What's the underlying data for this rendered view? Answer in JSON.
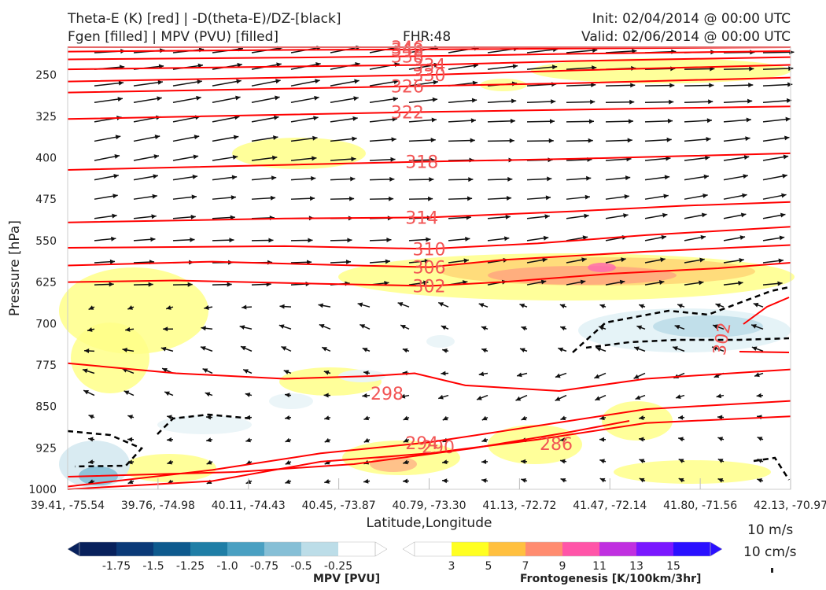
{
  "header": {
    "title_line1": "Theta-E (K) [red] | -D(theta-E)/DZ-[black]",
    "title_line2": "Fgen [filled] | MPV (PVU) [filled]",
    "fhr": "FHR:48",
    "init": "Init: 02/04/2014 @ 00:00 UTC",
    "valid": "Valid: 02/06/2014 @ 00:00 UTC"
  },
  "chart_data": {
    "type": "cross-section",
    "xlabel": "Latitude,Longitude",
    "ylabel": "Pressure [hPa]",
    "x_ticks": [
      "39.41, -75.54",
      "39.76, -74.98",
      "40.11, -74.43",
      "40.45, -73.87",
      "40.79, -73.30",
      "41.13, -72.72",
      "41.47, -72.14",
      "41.80, -71.56",
      "42.13, -70.97"
    ],
    "y_ticks": [
      250,
      325,
      400,
      475,
      550,
      625,
      700,
      775,
      850,
      925,
      1000
    ],
    "y_range": [
      1000,
      200
    ],
    "y_scale": "linear-inverted",
    "theta_e_contours": [
      {
        "label": "290",
        "color": "#ff0000",
        "points": [
          [
            0,
            1000
          ],
          [
            0.2,
            985
          ],
          [
            0.35,
            950
          ],
          [
            0.5,
            935
          ],
          [
            0.65,
            910
          ],
          [
            0.8,
            880
          ],
          [
            1,
            868
          ]
        ]
      },
      {
        "label": "294",
        "color": "#ff0000",
        "points": [
          [
            0,
            995
          ],
          [
            0.2,
            965
          ],
          [
            0.35,
            935
          ],
          [
            0.5,
            915
          ],
          [
            0.65,
            885
          ],
          [
            0.8,
            855
          ],
          [
            1,
            840
          ]
        ]
      },
      {
        "label": "298",
        "color": "#ff0000",
        "points": [
          [
            0,
            772
          ],
          [
            0.15,
            790
          ],
          [
            0.3,
            800
          ],
          [
            0.42,
            795
          ],
          [
            0.48,
            790
          ],
          [
            0.55,
            812
          ],
          [
            0.68,
            822
          ],
          [
            0.8,
            800
          ],
          [
            1,
            783
          ]
        ]
      },
      {
        "label": "302",
        "color": "#ff0000",
        "points": [
          [
            0,
            625
          ],
          [
            0.15,
            622
          ],
          [
            0.35,
            628
          ],
          [
            0.5,
            632
          ],
          [
            0.6,
            625
          ],
          [
            0.75,
            610
          ],
          [
            0.9,
            600
          ],
          [
            1,
            590
          ]
        ]
      },
      {
        "label": "306",
        "color": "#ff0000",
        "points": [
          [
            0,
            595
          ],
          [
            0.2,
            588
          ],
          [
            0.4,
            595
          ],
          [
            0.5,
            598
          ],
          [
            0.6,
            585
          ],
          [
            0.8,
            570
          ],
          [
            1,
            558
          ]
        ]
      },
      {
        "label": "310",
        "color": "#ff0000",
        "points": [
          [
            0,
            563
          ],
          [
            0.3,
            560
          ],
          [
            0.5,
            565
          ],
          [
            0.65,
            555
          ],
          [
            0.8,
            540
          ],
          [
            1,
            525
          ]
        ]
      },
      {
        "label": "314",
        "color": "#ff0000",
        "points": [
          [
            0,
            517
          ],
          [
            0.3,
            510
          ],
          [
            0.5,
            508
          ],
          [
            0.7,
            497
          ],
          [
            0.85,
            487
          ],
          [
            1,
            480
          ]
        ]
      },
      {
        "label": "318",
        "color": "#ff0000",
        "points": [
          [
            0,
            422
          ],
          [
            0.3,
            413
          ],
          [
            0.5,
            407
          ],
          [
            0.7,
            402
          ],
          [
            0.85,
            397
          ],
          [
            1,
            392
          ]
        ]
      },
      {
        "label": "322",
        "color": "#ff0000",
        "points": [
          [
            0,
            330
          ],
          [
            0.3,
            322
          ],
          [
            0.5,
            317
          ],
          [
            0.7,
            313
          ],
          [
            0.85,
            310
          ],
          [
            1,
            307
          ]
        ]
      },
      {
        "label": "326",
        "color": "#ff0000",
        "points": [
          [
            0,
            282
          ],
          [
            0.3,
            275
          ],
          [
            0.5,
            270
          ],
          [
            0.7,
            265
          ],
          [
            1,
            255
          ]
        ]
      },
      {
        "label": "330",
        "color": "#ff0000",
        "points": [
          [
            0,
            262
          ],
          [
            0.3,
            255
          ],
          [
            0.5,
            250
          ],
          [
            0.7,
            242
          ],
          [
            1,
            232
          ]
        ]
      },
      {
        "label": "334",
        "color": "#ff0000",
        "points": [
          [
            0,
            240
          ],
          [
            0.3,
            235
          ],
          [
            0.5,
            232
          ],
          [
            0.7,
            225
          ],
          [
            1,
            218
          ]
        ]
      },
      {
        "label": "338",
        "color": "#ff0000",
        "points": [
          [
            0,
            222
          ],
          [
            0.3,
            219
          ],
          [
            0.5,
            216
          ],
          [
            0.7,
            212
          ],
          [
            1,
            207
          ]
        ]
      },
      {
        "label": "342",
        "color": "#ff0000",
        "points": [
          [
            0,
            208
          ],
          [
            0.3,
            205
          ],
          [
            0.5,
            204
          ],
          [
            1,
            200
          ]
        ]
      },
      {
        "label": "346",
        "color": "#ff0000",
        "points": [
          [
            0,
            200
          ],
          [
            0.5,
            200
          ],
          [
            1,
            200
          ]
        ]
      }
    ],
    "mpv_colorbar": {
      "label": "MPV [PVU]",
      "ticks": [
        "-1.75",
        "-1.5",
        "-1.25",
        "-1.0",
        "-0.75",
        "-0.5",
        "-0.25"
      ],
      "colors": [
        "#08215c",
        "#0b3a78",
        "#0e5a8e",
        "#1f7ea6",
        "#4aa0c2",
        "#86bfd6",
        "#bcdde8",
        "#ffffff"
      ]
    },
    "fgen_colorbar": {
      "label": "Frontogenesis [K/100km/3hr]",
      "ticks": [
        "3",
        "5",
        "7",
        "9",
        "11",
        "13",
        "15"
      ],
      "colors": [
        "#ffffff",
        "#ffff22",
        "#ffc040",
        "#ff8c70",
        "#ff55a8",
        "#c030e0",
        "#7a18ff",
        "#2a10ff"
      ]
    },
    "vector_reference": {
      "horizontal": "10 m/s",
      "vertical": "10 cm/s"
    }
  }
}
